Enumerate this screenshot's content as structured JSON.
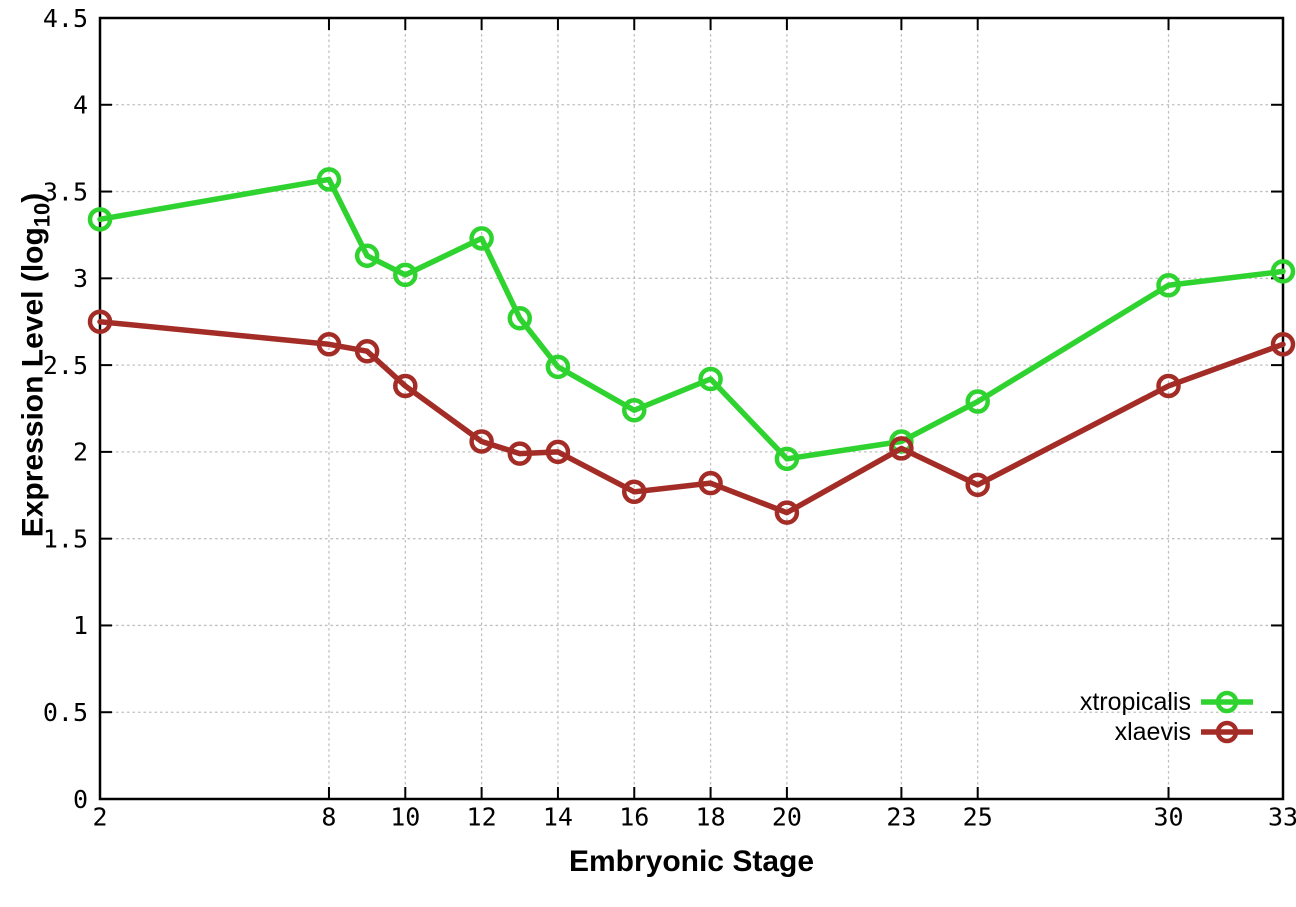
{
  "chart_data": {
    "type": "line",
    "title": "",
    "xlabel": "Embryonic Stage",
    "ylabel": "Expression Level (log10)",
    "ylabel_parts": {
      "main": "Expression Level (log",
      "sub": "10",
      "end": ")"
    },
    "xlim": [
      2,
      33
    ],
    "ylim": [
      0,
      4.5
    ],
    "grid": true,
    "legend_position": "inside bottom-right",
    "xticks": [
      2,
      8,
      10,
      12,
      14,
      16,
      18,
      20,
      23,
      25,
      30,
      33
    ],
    "xtick_labels": [
      "2",
      "8",
      "10",
      "12",
      "14",
      "16",
      "18",
      "20",
      "23",
      "25",
      "30",
      "33"
    ],
    "yticks": [
      0,
      0.5,
      1,
      1.5,
      2,
      2.5,
      3,
      3.5,
      4,
      4.5
    ],
    "ytick_labels": [
      "0",
      "0.5",
      "1",
      "1.5",
      "2",
      "2.5",
      "3",
      "3.5",
      "4",
      "4.5"
    ],
    "x": [
      2,
      8,
      9,
      10,
      12,
      13,
      14,
      16,
      18,
      20,
      23,
      25,
      30,
      33
    ],
    "series": [
      {
        "name": "xtropicalis",
        "color": "#2fd32f",
        "values": [
          3.34,
          3.57,
          3.13,
          3.02,
          3.23,
          2.77,
          2.49,
          2.24,
          2.42,
          1.96,
          2.06,
          2.29,
          2.96,
          3.04
        ]
      },
      {
        "name": "xlaevis",
        "color": "#a32d26",
        "values": [
          2.75,
          2.62,
          2.58,
          2.38,
          2.06,
          1.99,
          2.0,
          1.77,
          1.82,
          1.65,
          2.02,
          1.81,
          2.38,
          2.62
        ]
      }
    ]
  },
  "style_colors": {
    "grid": "#bfbfbf",
    "axis": "#000000",
    "background": "#ffffff",
    "tick_label": "#000000"
  }
}
